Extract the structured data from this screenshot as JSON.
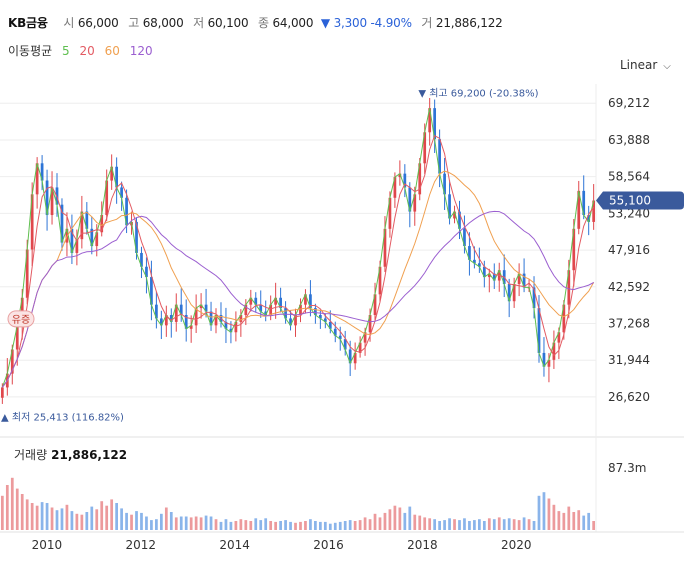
{
  "header": {
    "name": "KB금융",
    "open_label": "시",
    "open": "66,000",
    "high_label": "고",
    "high": "68,000",
    "low_label": "저",
    "low": "60,100",
    "close_label": "종",
    "close": "64,000",
    "change": "▼ 3,300 -4.90%",
    "volume_label": "거",
    "volume": "21,886,122"
  },
  "ma_legend": {
    "title": "이동평균",
    "p5": "5",
    "p20": "20",
    "p60": "60",
    "p120": "120"
  },
  "scale_label": "Linear",
  "colors": {
    "up": "#e0474c",
    "down": "#2d74d6",
    "ma5": "#5fbf4f",
    "ma20": "#e35b63",
    "ma60": "#f0a050",
    "ma120": "#9b5fd0",
    "price_tag": "#3a5a9c"
  },
  "chart_data": {
    "type": "candlestick",
    "x_ticks": [
      "2010",
      "2012",
      "2014",
      "2016",
      "2018",
      "2020"
    ],
    "x_tick_years": [
      2010,
      2012,
      2014,
      2016,
      2018,
      2020
    ],
    "x_range": [
      2009.0,
      2021.7
    ],
    "y_ticks": [
      "69,212",
      "63,888",
      "58,564",
      "53,240",
      "47,916",
      "42,592",
      "37,268",
      "31,944",
      "26,620"
    ],
    "y_range": [
      24000,
      72000
    ],
    "current_price": 55100,
    "current_price_label": "55,100",
    "high_marker": {
      "label": "최고 69,200 (-20.38%)",
      "value": 69200,
      "x": 2018.0
    },
    "low_marker": {
      "label": "최저 25,413 (116.82%)",
      "value": 25413,
      "x": 2009.15
    },
    "badge": "유증",
    "volume_label": "거래량",
    "volume_value": "21,886,122",
    "volume_axis_tick": "87.3m",
    "closes": [
      28000,
      30000,
      33500,
      37000,
      41000,
      48000,
      56000,
      60500,
      58000,
      53000,
      57000,
      54500,
      49000,
      51000,
      47500,
      49500,
      53500,
      51000,
      48500,
      50500,
      53000,
      58000,
      60000,
      57000,
      55500,
      51500,
      52000,
      47500,
      45500,
      44000,
      40000,
      38000,
      37000,
      38500,
      37500,
      40000,
      38500,
      36500,
      37000,
      39500,
      40000,
      39000,
      37000,
      38500,
      37500,
      36500,
      36000,
      37500,
      38500,
      40000,
      41000,
      40000,
      39000,
      38500,
      40000,
      41000,
      39500,
      38000,
      37000,
      38500,
      40000,
      41500,
      39500,
      38500,
      38000,
      37500,
      36500,
      35500,
      35000,
      33500,
      31500,
      33000,
      34500,
      36000,
      38500,
      41500,
      45500,
      51000,
      55500,
      58500,
      59000,
      57000,
      53500,
      56000,
      60500,
      65000,
      68500,
      64000,
      59000,
      56000,
      52500,
      53500,
      51000,
      48500,
      46500,
      46000,
      45500,
      44000,
      44500,
      43500,
      45000,
      43000,
      40500,
      43000,
      44500,
      42500,
      42500,
      39500,
      33000,
      31000,
      32000,
      34500,
      36000,
      40000,
      45000,
      51000,
      56500,
      53000,
      52000,
      55100
    ],
    "volume_max": 87300000,
    "volumes": [
      38,
      50,
      58,
      46,
      40,
      34,
      30,
      27,
      31,
      30,
      25,
      22,
      24,
      28,
      21,
      18,
      17,
      20,
      26,
      23,
      32,
      27,
      34,
      30,
      24,
      19,
      17,
      21,
      19,
      15,
      11,
      12,
      18,
      25,
      20,
      14,
      15,
      15,
      14,
      15,
      14,
      16,
      15,
      12,
      9,
      12,
      9,
      10,
      12,
      11,
      10,
      13,
      11,
      13,
      10,
      9,
      10,
      11,
      9,
      8,
      9,
      10,
      12,
      10,
      9,
      9,
      7,
      8,
      9,
      10,
      11,
      10,
      11,
      14,
      12,
      18,
      14,
      19,
      23,
      27,
      25,
      19,
      26,
      17,
      16,
      14,
      13,
      12,
      10,
      11,
      13,
      12,
      11,
      13,
      10,
      11,
      12,
      10,
      13,
      12,
      14,
      12,
      13,
      12,
      11,
      14,
      12,
      10,
      38,
      42,
      35,
      28,
      21,
      19,
      26,
      20,
      22,
      16,
      19,
      10
    ]
  }
}
